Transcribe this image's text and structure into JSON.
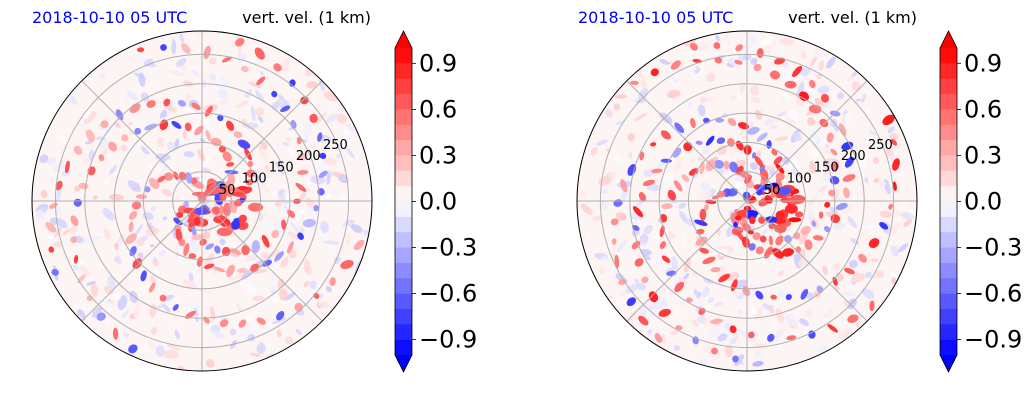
{
  "chart_data": [
    {
      "type": "heatmap",
      "projection": "polar",
      "title_left": "2018-10-10 05 UTC",
      "title_right": "vert. vel. (1 km)",
      "radial_tick_labels": [
        "50",
        "100",
        "150",
        "200",
        "250"
      ],
      "radial_ticks": [
        50,
        100,
        150,
        200,
        250
      ],
      "r_max": 290,
      "grid": true,
      "colormap": "bwr",
      "color_min": "#0000ff",
      "color_max": "#ff0000",
      "vmin": -1.0,
      "vmax": 1.0,
      "colorbar_ticks": [
        0.9,
        0.6,
        0.3,
        0.0,
        -0.3,
        -0.6,
        -0.9
      ],
      "colorbar_tick_labels": [
        "0.9",
        "0.6",
        "0.3",
        "0.0",
        "−0.3",
        "−0.6",
        "−0.9"
      ]
    },
    {
      "type": "heatmap",
      "projection": "polar",
      "title_left": "2018-10-10 05 UTC",
      "title_right": "vert. vel. (1 km)",
      "radial_tick_labels": [
        "50",
        "100",
        "150",
        "200",
        "250"
      ],
      "radial_ticks": [
        50,
        100,
        150,
        200,
        250
      ],
      "r_max": 290,
      "grid": true,
      "colormap": "bwr",
      "color_min": "#0000ff",
      "color_max": "#ff0000",
      "vmin": -1.0,
      "vmax": 1.0,
      "colorbar_ticks": [
        0.9,
        0.6,
        0.3,
        0.0,
        -0.3,
        -0.6,
        -0.9
      ],
      "colorbar_tick_labels": [
        "0.9",
        "0.6",
        "0.3",
        "0.0",
        "−0.3",
        "−0.6",
        "−0.9"
      ]
    }
  ]
}
